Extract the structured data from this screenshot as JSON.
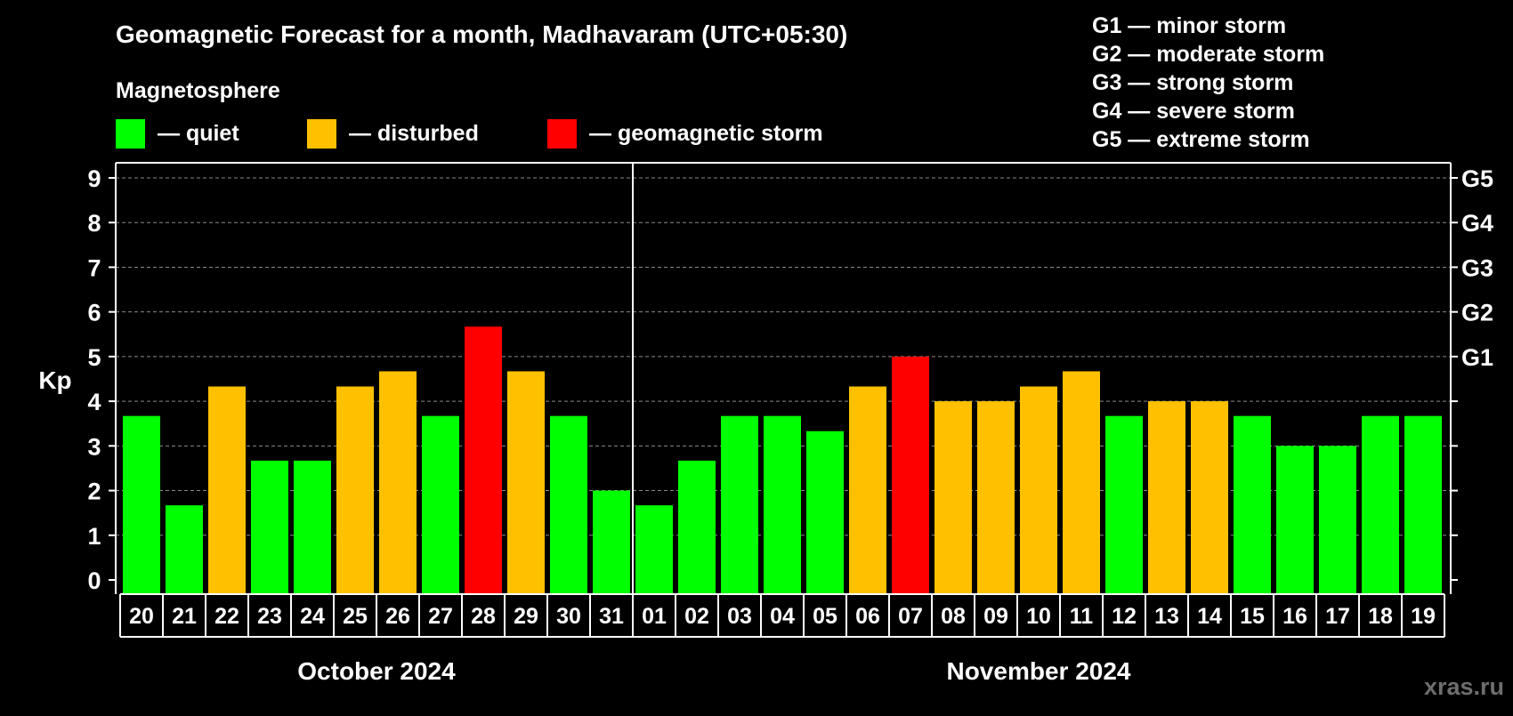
{
  "chart_data": {
    "type": "bar",
    "title": "Geomagnetic Forecast for a month, Madhavaram (UTC+05:30)",
    "ylabel": "Kp",
    "ylim": [
      0,
      9
    ],
    "yticks": [
      "0",
      "1",
      "2",
      "3",
      "4",
      "5",
      "6",
      "7",
      "8",
      "9"
    ],
    "grid": true,
    "storm_levels": [
      {
        "label": "G1",
        "kp": 5
      },
      {
        "label": "G2",
        "kp": 6
      },
      {
        "label": "G3",
        "kp": 7
      },
      {
        "label": "G4",
        "kp": 8
      },
      {
        "label": "G5",
        "kp": 9
      }
    ],
    "storm_legend": [
      "G1 — minor storm",
      "G2 — moderate storm",
      "G3 — strong storm",
      "G4 — severe storm",
      "G5 — extreme storm"
    ],
    "legend": {
      "heading": "Magnetosphere",
      "entries": [
        {
          "label": "— quiet",
          "status": "quiet"
        },
        {
          "label": "— disturbed",
          "status": "disturbed"
        },
        {
          "label": "— geomagnetic storm",
          "status": "storm"
        }
      ]
    },
    "colors": {
      "quiet": "#00ff00",
      "disturbed": "#ffc000",
      "storm": "#ff0000",
      "background": "#000000",
      "foreground": "#ffffff",
      "grid": "#8a8a8a"
    },
    "months": [
      {
        "label": "October 2024",
        "first_index": 0,
        "last_index": 11
      },
      {
        "label": "November 2024",
        "first_index": 12,
        "last_index": 30
      }
    ],
    "categories": [
      "20",
      "21",
      "22",
      "23",
      "24",
      "25",
      "26",
      "27",
      "28",
      "29",
      "30",
      "31",
      "01",
      "02",
      "03",
      "04",
      "05",
      "06",
      "07",
      "08",
      "09",
      "10",
      "11",
      "12",
      "13",
      "14",
      "15",
      "16",
      "17",
      "18",
      "19"
    ],
    "values": [
      3.67,
      1.67,
      4.33,
      2.67,
      2.67,
      4.33,
      4.67,
      3.67,
      5.67,
      4.67,
      3.67,
      2.0,
      1.67,
      2.67,
      3.67,
      3.67,
      3.33,
      4.33,
      5.0,
      4.0,
      4.0,
      4.33,
      4.67,
      3.67,
      4.0,
      4.0,
      3.67,
      3.0,
      3.0,
      3.67,
      3.67
    ],
    "status": [
      "quiet",
      "quiet",
      "disturbed",
      "quiet",
      "quiet",
      "disturbed",
      "disturbed",
      "quiet",
      "storm",
      "disturbed",
      "quiet",
      "quiet",
      "quiet",
      "quiet",
      "quiet",
      "quiet",
      "quiet",
      "disturbed",
      "storm",
      "disturbed",
      "disturbed",
      "disturbed",
      "disturbed",
      "quiet",
      "disturbed",
      "disturbed",
      "quiet",
      "quiet",
      "quiet",
      "quiet",
      "quiet"
    ],
    "watermark": "xras.ru"
  }
}
